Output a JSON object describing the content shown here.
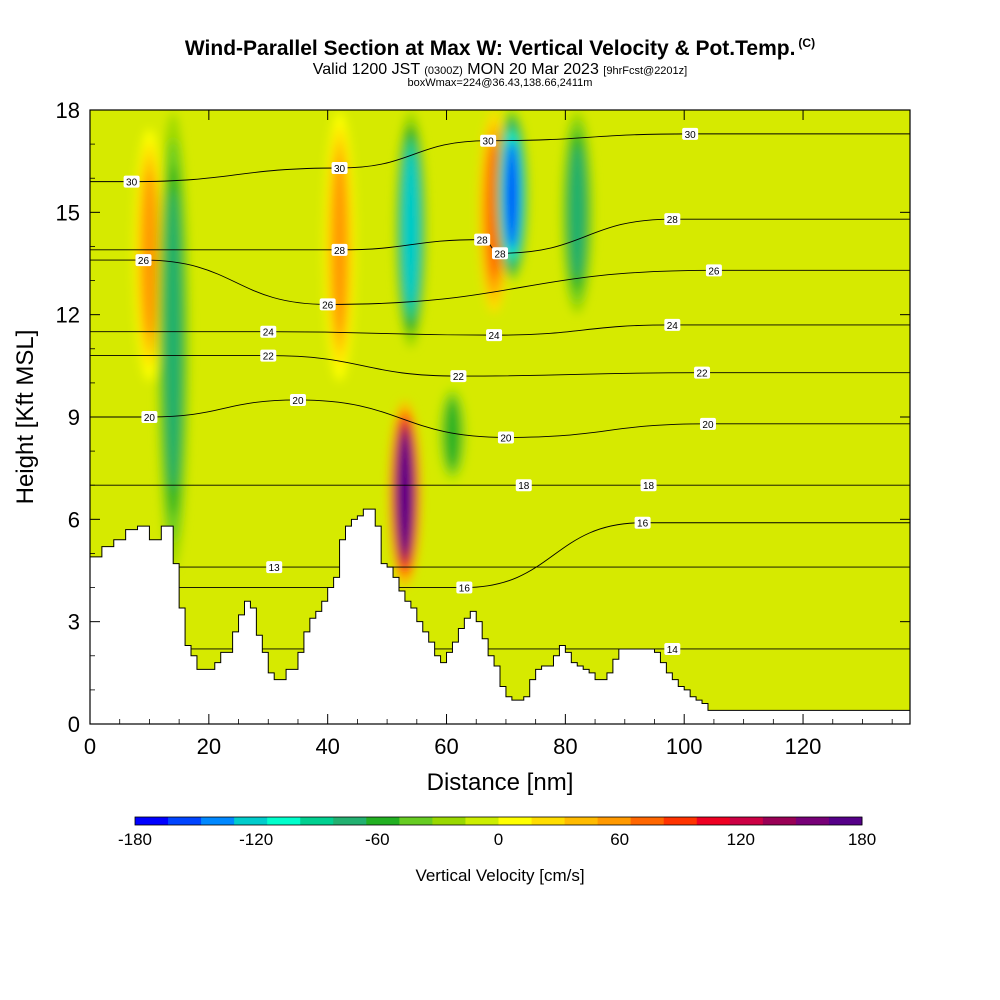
{
  "header": {
    "title": "Wind-Parallel Section at Max W: Vertical Velocity & Pot.Temp.",
    "title_mark": "(C)",
    "subtitle_a": "Valid 1200 JST",
    "subtitle_b": "(0300Z)",
    "subtitle_c": "MON 20 Mar 2023",
    "subtitle_d": "[9hrFcst@2201z]",
    "info": "boxWmax=224@36.43,138.66,2411m"
  },
  "chart_data": {
    "type": "heatmap",
    "xlabel": "Distance [nm]",
    "ylabel": "Height [Kft MSL]",
    "xlim": [
      0,
      138
    ],
    "ylim": [
      0,
      18
    ],
    "x_ticks": [
      0,
      20,
      40,
      60,
      80,
      100,
      120
    ],
    "y_ticks": [
      0,
      3,
      6,
      9,
      12,
      15,
      18
    ],
    "colorbar": {
      "label": "Vertical Velocity [cm/s]",
      "range": [
        -180,
        180
      ],
      "tick_labels": [
        "-180",
        "-120",
        "-60",
        "0",
        "60",
        "120",
        "180"
      ],
      "colors": [
        "#0000ff",
        "#0044ff",
        "#0088ff",
        "#00cccc",
        "#00ffcc",
        "#00d090",
        "#22b070",
        "#22b022",
        "#66cc22",
        "#99d800",
        "#ccee00",
        "#ffff00",
        "#ffdd00",
        "#ffbb00",
        "#ff9900",
        "#ff6600",
        "#ff3300",
        "#ee0022",
        "#cc0044",
        "#990055",
        "#770077",
        "#550088"
      ]
    },
    "velocity_features": [
      {
        "x": 10,
        "z_range": [
          10,
          17.5
        ],
        "w": 60
      },
      {
        "x": 14,
        "z_range": [
          4.5,
          18
        ],
        "w": -70
      },
      {
        "x": 42,
        "z_range": [
          10,
          18
        ],
        "w": 50
      },
      {
        "x": 53,
        "z_range": [
          4,
          9.5
        ],
        "w": 180,
        "note": "max updraft core"
      },
      {
        "x": 54,
        "z_range": [
          11,
          18
        ],
        "w": -120
      },
      {
        "x": 61,
        "z_range": [
          7,
          10
        ],
        "w": -60
      },
      {
        "x": 68,
        "z_range": [
          12,
          18
        ],
        "w": 80
      },
      {
        "x": 71,
        "z_range": [
          13,
          18
        ],
        "w": -150
      },
      {
        "x": 82,
        "z_range": [
          12,
          18
        ],
        "w": -70
      }
    ],
    "theta_contours": [
      {
        "label": "13",
        "value": 13,
        "x": 31,
        "z": 4.6
      },
      {
        "label": "14",
        "value": 14,
        "x": 98,
        "z": 2.2
      },
      {
        "label": "16",
        "value": 16,
        "x": 63,
        "z": 4.0
      },
      {
        "label": "16",
        "value": 16,
        "x": 93,
        "z": 5.9
      },
      {
        "label": "18",
        "value": 18,
        "x": 73,
        "z": 7.0
      },
      {
        "label": "18",
        "value": 18,
        "x": 94,
        "z": 7.0
      },
      {
        "label": "20",
        "value": 20,
        "x": 10,
        "z": 9.0
      },
      {
        "label": "20",
        "value": 20,
        "x": 35,
        "z": 9.5
      },
      {
        "label": "20",
        "value": 20,
        "x": 70,
        "z": 8.4
      },
      {
        "label": "20",
        "value": 20,
        "x": 104,
        "z": 8.8
      },
      {
        "label": "22",
        "value": 22,
        "x": 30,
        "z": 10.8
      },
      {
        "label": "22",
        "value": 22,
        "x": 62,
        "z": 10.2
      },
      {
        "label": "22",
        "value": 22,
        "x": 103,
        "z": 10.3
      },
      {
        "label": "24",
        "value": 24,
        "x": 30,
        "z": 11.5
      },
      {
        "label": "24",
        "value": 24,
        "x": 68,
        "z": 11.4
      },
      {
        "label": "24",
        "value": 24,
        "x": 98,
        "z": 11.7
      },
      {
        "label": "26",
        "value": 26,
        "x": 9,
        "z": 13.6
      },
      {
        "label": "26",
        "value": 26,
        "x": 40,
        "z": 12.3
      },
      {
        "label": "26",
        "value": 26,
        "x": 105,
        "z": 13.3
      },
      {
        "label": "28",
        "value": 28,
        "x": 42,
        "z": 13.9
      },
      {
        "label": "28",
        "value": 28,
        "x": 66,
        "z": 14.2
      },
      {
        "label": "28",
        "value": 28,
        "x": 98,
        "z": 14.8
      },
      {
        "label": "28",
        "value": 28,
        "x": 69,
        "z": 13.8
      },
      {
        "label": "30",
        "value": 30,
        "x": 7,
        "z": 15.9
      },
      {
        "label": "30",
        "value": 30,
        "x": 42,
        "z": 16.3
      },
      {
        "label": "30",
        "value": 30,
        "x": 67,
        "z": 17.1
      },
      {
        "label": "30",
        "value": 30,
        "x": 101,
        "z": 17.3
      }
    ],
    "terrain": [
      [
        0,
        4.9
      ],
      [
        2,
        5.2
      ],
      [
        4,
        5.4
      ],
      [
        6,
        5.7
      ],
      [
        8,
        5.8
      ],
      [
        10,
        5.4
      ],
      [
        12,
        5.8
      ],
      [
        14,
        4.7
      ],
      [
        15,
        3.4
      ],
      [
        16,
        2.3
      ],
      [
        17,
        2.0
      ],
      [
        18,
        1.6
      ],
      [
        20,
        1.6
      ],
      [
        21,
        1.8
      ],
      [
        22,
        2.1
      ],
      [
        24,
        2.7
      ],
      [
        25,
        3.2
      ],
      [
        26,
        3.6
      ],
      [
        27,
        3.4
      ],
      [
        28,
        2.6
      ],
      [
        29,
        2.1
      ],
      [
        30,
        1.5
      ],
      [
        31,
        1.3
      ],
      [
        33,
        1.6
      ],
      [
        35,
        2.1
      ],
      [
        36,
        2.7
      ],
      [
        37,
        3.1
      ],
      [
        38,
        3.3
      ],
      [
        39,
        3.6
      ],
      [
        40,
        4.0
      ],
      [
        41,
        4.3
      ],
      [
        42,
        5.4
      ],
      [
        43,
        5.8
      ],
      [
        44,
        6.0
      ],
      [
        45,
        6.1
      ],
      [
        46,
        6.3
      ],
      [
        47,
        6.3
      ],
      [
        48,
        5.8
      ],
      [
        49,
        4.7
      ],
      [
        50,
        4.6
      ],
      [
        51,
        4.3
      ],
      [
        52,
        3.9
      ],
      [
        53,
        3.6
      ],
      [
        54,
        3.4
      ],
      [
        55,
        3.0
      ],
      [
        56,
        2.7
      ],
      [
        57,
        2.4
      ],
      [
        58,
        2.0
      ],
      [
        59,
        1.8
      ],
      [
        60,
        2.1
      ],
      [
        61,
        2.4
      ],
      [
        62,
        2.8
      ],
      [
        63,
        3.1
      ],
      [
        64,
        3.3
      ],
      [
        65,
        3.0
      ],
      [
        66,
        2.5
      ],
      [
        67,
        2.0
      ],
      [
        68,
        1.7
      ],
      [
        69,
        1.1
      ],
      [
        70,
        0.8
      ],
      [
        71,
        0.7
      ],
      [
        72,
        0.7
      ],
      [
        73,
        0.8
      ],
      [
        74,
        1.3
      ],
      [
        75,
        1.6
      ],
      [
        76,
        1.7
      ],
      [
        77,
        1.7
      ],
      [
        78,
        2.0
      ],
      [
        79,
        2.3
      ],
      [
        80,
        2.1
      ],
      [
        81,
        1.8
      ],
      [
        82,
        1.7
      ],
      [
        83,
        1.6
      ],
      [
        84,
        1.5
      ],
      [
        85,
        1.3
      ],
      [
        86,
        1.3
      ],
      [
        87,
        1.5
      ],
      [
        88,
        1.9
      ],
      [
        89,
        2.2
      ],
      [
        91,
        2.2
      ],
      [
        93,
        2.2
      ],
      [
        94,
        2.2
      ],
      [
        95,
        2.1
      ],
      [
        96,
        1.8
      ],
      [
        97,
        1.5
      ],
      [
        98,
        1.3
      ],
      [
        99,
        1.1
      ],
      [
        100,
        1.0
      ],
      [
        101,
        0.8
      ],
      [
        102,
        0.7
      ],
      [
        103,
        0.6
      ],
      [
        104,
        0.4
      ],
      [
        106,
        0.4
      ],
      [
        110,
        0.4
      ],
      [
        120,
        0.4
      ],
      [
        130,
        0.4
      ],
      [
        138,
        0.4
      ]
    ]
  }
}
